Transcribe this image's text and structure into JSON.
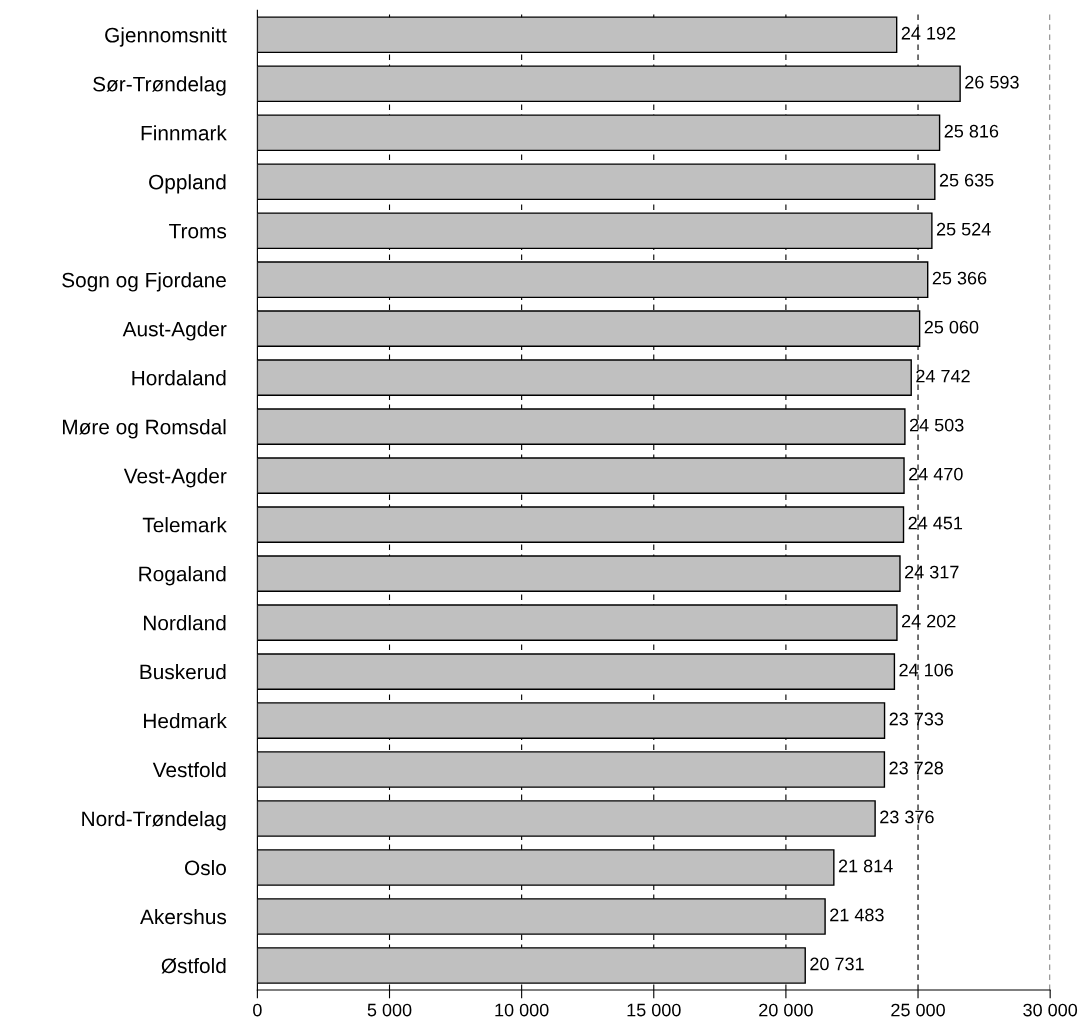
{
  "chart_data": {
    "type": "bar",
    "orientation": "horizontal",
    "categories": [
      "Gjennomsnitt",
      "Sør-Trøndelag",
      "Finnmark",
      "Oppland",
      "Troms",
      "Sogn og Fjordane",
      "Aust-Agder",
      "Hordaland",
      "Møre og Romsdal",
      "Vest-Agder",
      "Telemark",
      "Rogaland",
      "Nordland",
      "Buskerud",
      "Hedmark",
      "Vestfold",
      "Nord-Trøndelag",
      "Oslo",
      "Akershus",
      "Østfold"
    ],
    "values": [
      24192,
      26593,
      25816,
      25635,
      25524,
      25366,
      25060,
      24742,
      24503,
      24470,
      24451,
      24317,
      24202,
      24106,
      23733,
      23728,
      23376,
      21814,
      21483,
      20731
    ],
    "value_labels": [
      "24 192",
      "26 593",
      "25 816",
      "25 635",
      "25 524",
      "25 366",
      "25 060",
      "24 742",
      "24 503",
      "24 470",
      "24 451",
      "24 317",
      "24 202",
      "24 106",
      "23 733",
      "23 728",
      "23 376",
      "21 814",
      "21 483",
      "20 731"
    ],
    "color": "#c0c0c0",
    "xlim": [
      0,
      30000
    ],
    "xticks": [
      0,
      {
        "value": 5000,
        "label": "5 000"
      },
      {
        "value": 10000,
        "label": "10 000"
      },
      {
        "value": 15000,
        "label": "15 000"
      },
      {
        "value": 20000,
        "label": "20 000"
      },
      {
        "value": 25000,
        "label": "25 000"
      },
      {
        "value": 30000,
        "label": "30 000"
      }
    ],
    "grid": "x"
  }
}
